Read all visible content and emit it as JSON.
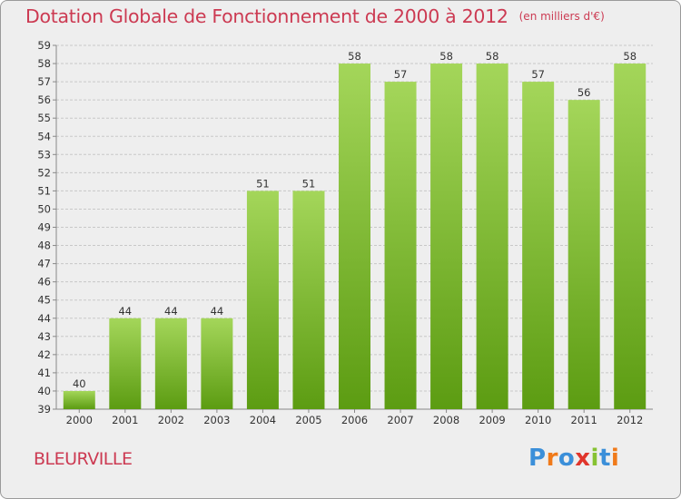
{
  "chart_data": {
    "type": "bar",
    "title": "Dotation Globale de Fonctionnement de 2000 à 2012",
    "unit_note": "(en milliers d'€)",
    "categories": [
      "2000",
      "2001",
      "2002",
      "2003",
      "2004",
      "2005",
      "2006",
      "2007",
      "2008",
      "2009",
      "2010",
      "2011",
      "2012"
    ],
    "values": [
      40,
      44,
      44,
      44,
      51,
      51,
      58,
      57,
      58,
      58,
      57,
      56,
      58
    ],
    "ylim": [
      39,
      59
    ],
    "yticks": [
      39,
      40,
      41,
      42,
      43,
      44,
      45,
      46,
      47,
      48,
      49,
      50,
      51,
      52,
      53,
      54,
      55,
      56,
      57,
      58,
      59
    ],
    "grid": true,
    "xlabel": "",
    "ylabel": ""
  },
  "footer": {
    "commune": "BLEURVILLE",
    "logo_text": "Proxiti"
  },
  "colors": {
    "title": "#cc3a52",
    "bar_top": "#a4d65a",
    "bar_bottom": "#5c9c12",
    "grid": "#c8c8c8",
    "logo": [
      "#3b8fd9",
      "#f07a1a",
      "#3b8fd9",
      "#e0352b",
      "#86c232",
      "#3b8fd9",
      "#f07a1a"
    ]
  }
}
